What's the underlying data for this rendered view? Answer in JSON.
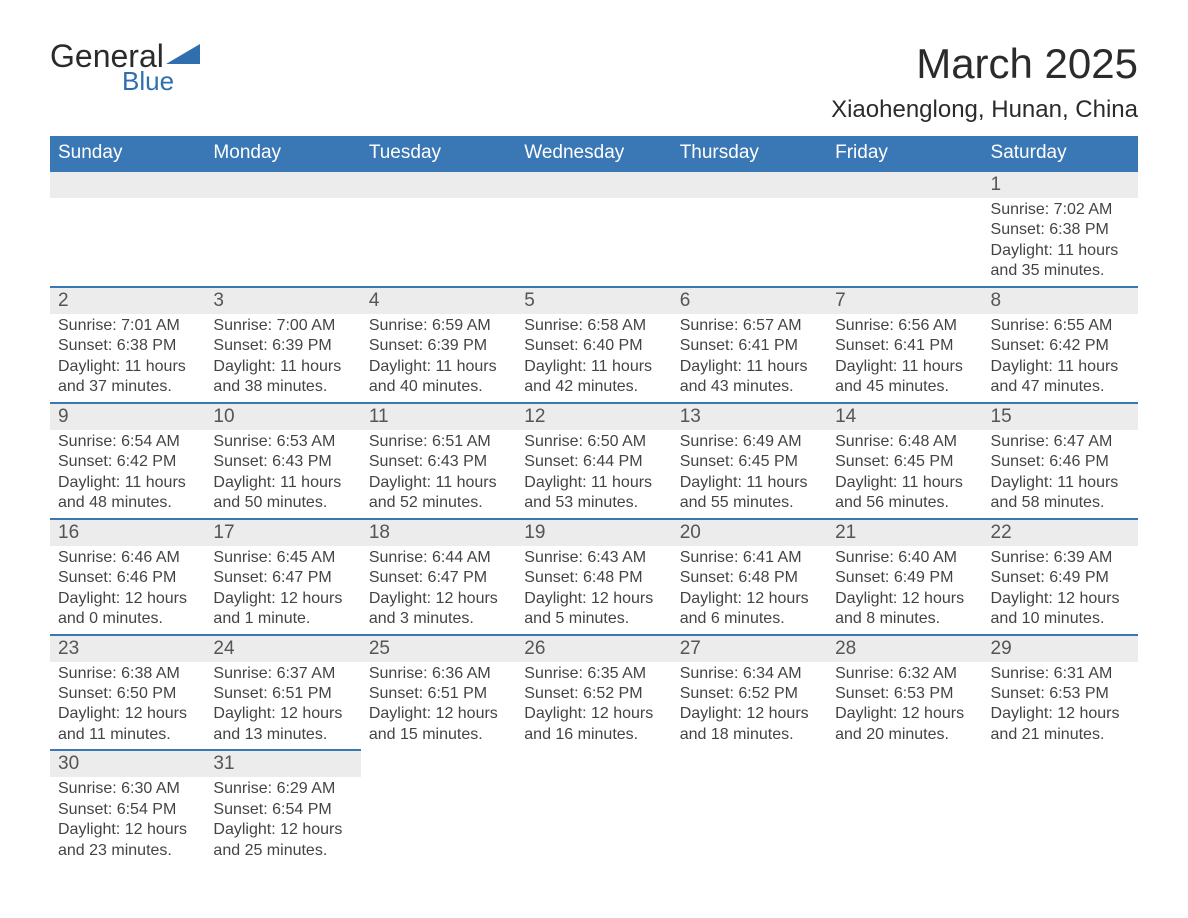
{
  "logo": {
    "text_dark": "General",
    "text_blue": "Blue",
    "brand_color": "#2f6fb0"
  },
  "title": "March 2025",
  "location": "Xiaohenglong, Hunan, China",
  "colors": {
    "header_bg": "#3a77b5",
    "header_text": "#ffffff",
    "daynum_bg": "#ececec",
    "row_border": "#3a77b5",
    "body_text": "#444444",
    "title_text": "#2b2b2b"
  },
  "weekdays": [
    "Sunday",
    "Monday",
    "Tuesday",
    "Wednesday",
    "Thursday",
    "Friday",
    "Saturday"
  ],
  "weeks": [
    [
      null,
      null,
      null,
      null,
      null,
      null,
      {
        "n": "1",
        "sunrise": "Sunrise: 7:02 AM",
        "sunset": "Sunset: 6:38 PM",
        "day1": "Daylight: 11 hours",
        "day2": "and 35 minutes."
      }
    ],
    [
      {
        "n": "2",
        "sunrise": "Sunrise: 7:01 AM",
        "sunset": "Sunset: 6:38 PM",
        "day1": "Daylight: 11 hours",
        "day2": "and 37 minutes."
      },
      {
        "n": "3",
        "sunrise": "Sunrise: 7:00 AM",
        "sunset": "Sunset: 6:39 PM",
        "day1": "Daylight: 11 hours",
        "day2": "and 38 minutes."
      },
      {
        "n": "4",
        "sunrise": "Sunrise: 6:59 AM",
        "sunset": "Sunset: 6:39 PM",
        "day1": "Daylight: 11 hours",
        "day2": "and 40 minutes."
      },
      {
        "n": "5",
        "sunrise": "Sunrise: 6:58 AM",
        "sunset": "Sunset: 6:40 PM",
        "day1": "Daylight: 11 hours",
        "day2": "and 42 minutes."
      },
      {
        "n": "6",
        "sunrise": "Sunrise: 6:57 AM",
        "sunset": "Sunset: 6:41 PM",
        "day1": "Daylight: 11 hours",
        "day2": "and 43 minutes."
      },
      {
        "n": "7",
        "sunrise": "Sunrise: 6:56 AM",
        "sunset": "Sunset: 6:41 PM",
        "day1": "Daylight: 11 hours",
        "day2": "and 45 minutes."
      },
      {
        "n": "8",
        "sunrise": "Sunrise: 6:55 AM",
        "sunset": "Sunset: 6:42 PM",
        "day1": "Daylight: 11 hours",
        "day2": "and 47 minutes."
      }
    ],
    [
      {
        "n": "9",
        "sunrise": "Sunrise: 6:54 AM",
        "sunset": "Sunset: 6:42 PM",
        "day1": "Daylight: 11 hours",
        "day2": "and 48 minutes."
      },
      {
        "n": "10",
        "sunrise": "Sunrise: 6:53 AM",
        "sunset": "Sunset: 6:43 PM",
        "day1": "Daylight: 11 hours",
        "day2": "and 50 minutes."
      },
      {
        "n": "11",
        "sunrise": "Sunrise: 6:51 AM",
        "sunset": "Sunset: 6:43 PM",
        "day1": "Daylight: 11 hours",
        "day2": "and 52 minutes."
      },
      {
        "n": "12",
        "sunrise": "Sunrise: 6:50 AM",
        "sunset": "Sunset: 6:44 PM",
        "day1": "Daylight: 11 hours",
        "day2": "and 53 minutes."
      },
      {
        "n": "13",
        "sunrise": "Sunrise: 6:49 AM",
        "sunset": "Sunset: 6:45 PM",
        "day1": "Daylight: 11 hours",
        "day2": "and 55 minutes."
      },
      {
        "n": "14",
        "sunrise": "Sunrise: 6:48 AM",
        "sunset": "Sunset: 6:45 PM",
        "day1": "Daylight: 11 hours",
        "day2": "and 56 minutes."
      },
      {
        "n": "15",
        "sunrise": "Sunrise: 6:47 AM",
        "sunset": "Sunset: 6:46 PM",
        "day1": "Daylight: 11 hours",
        "day2": "and 58 minutes."
      }
    ],
    [
      {
        "n": "16",
        "sunrise": "Sunrise: 6:46 AM",
        "sunset": "Sunset: 6:46 PM",
        "day1": "Daylight: 12 hours",
        "day2": "and 0 minutes."
      },
      {
        "n": "17",
        "sunrise": "Sunrise: 6:45 AM",
        "sunset": "Sunset: 6:47 PM",
        "day1": "Daylight: 12 hours",
        "day2": "and 1 minute."
      },
      {
        "n": "18",
        "sunrise": "Sunrise: 6:44 AM",
        "sunset": "Sunset: 6:47 PM",
        "day1": "Daylight: 12 hours",
        "day2": "and 3 minutes."
      },
      {
        "n": "19",
        "sunrise": "Sunrise: 6:43 AM",
        "sunset": "Sunset: 6:48 PM",
        "day1": "Daylight: 12 hours",
        "day2": "and 5 minutes."
      },
      {
        "n": "20",
        "sunrise": "Sunrise: 6:41 AM",
        "sunset": "Sunset: 6:48 PM",
        "day1": "Daylight: 12 hours",
        "day2": "and 6 minutes."
      },
      {
        "n": "21",
        "sunrise": "Sunrise: 6:40 AM",
        "sunset": "Sunset: 6:49 PM",
        "day1": "Daylight: 12 hours",
        "day2": "and 8 minutes."
      },
      {
        "n": "22",
        "sunrise": "Sunrise: 6:39 AM",
        "sunset": "Sunset: 6:49 PM",
        "day1": "Daylight: 12 hours",
        "day2": "and 10 minutes."
      }
    ],
    [
      {
        "n": "23",
        "sunrise": "Sunrise: 6:38 AM",
        "sunset": "Sunset: 6:50 PM",
        "day1": "Daylight: 12 hours",
        "day2": "and 11 minutes."
      },
      {
        "n": "24",
        "sunrise": "Sunrise: 6:37 AM",
        "sunset": "Sunset: 6:51 PM",
        "day1": "Daylight: 12 hours",
        "day2": "and 13 minutes."
      },
      {
        "n": "25",
        "sunrise": "Sunrise: 6:36 AM",
        "sunset": "Sunset: 6:51 PM",
        "day1": "Daylight: 12 hours",
        "day2": "and 15 minutes."
      },
      {
        "n": "26",
        "sunrise": "Sunrise: 6:35 AM",
        "sunset": "Sunset: 6:52 PM",
        "day1": "Daylight: 12 hours",
        "day2": "and 16 minutes."
      },
      {
        "n": "27",
        "sunrise": "Sunrise: 6:34 AM",
        "sunset": "Sunset: 6:52 PM",
        "day1": "Daylight: 12 hours",
        "day2": "and 18 minutes."
      },
      {
        "n": "28",
        "sunrise": "Sunrise: 6:32 AM",
        "sunset": "Sunset: 6:53 PM",
        "day1": "Daylight: 12 hours",
        "day2": "and 20 minutes."
      },
      {
        "n": "29",
        "sunrise": "Sunrise: 6:31 AM",
        "sunset": "Sunset: 6:53 PM",
        "day1": "Daylight: 12 hours",
        "day2": "and 21 minutes."
      }
    ],
    [
      {
        "n": "30",
        "sunrise": "Sunrise: 6:30 AM",
        "sunset": "Sunset: 6:54 PM",
        "day1": "Daylight: 12 hours",
        "day2": "and 23 minutes."
      },
      {
        "n": "31",
        "sunrise": "Sunrise: 6:29 AM",
        "sunset": "Sunset: 6:54 PM",
        "day1": "Daylight: 12 hours",
        "day2": "and 25 minutes."
      },
      null,
      null,
      null,
      null,
      null
    ]
  ]
}
